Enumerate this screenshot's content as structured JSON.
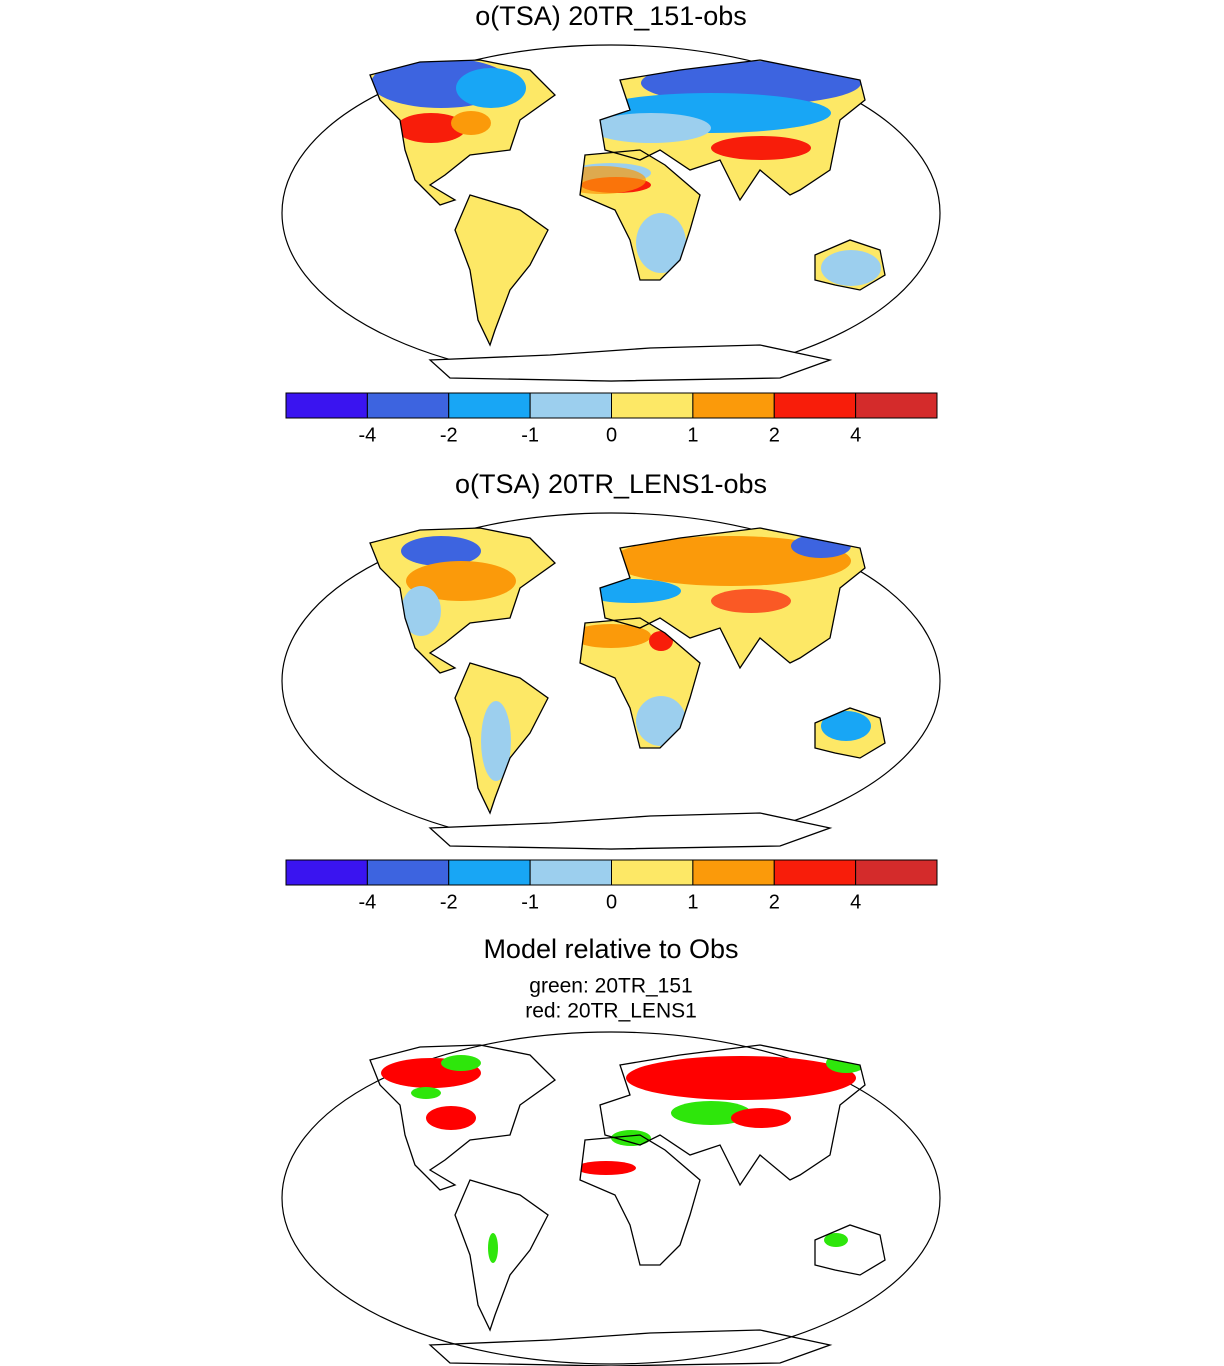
{
  "panels": [
    {
      "title": "o(TSA) 20TR_151-obs",
      "colorbar": {
        "colors": [
          "#3a14f0",
          "#3d64e0",
          "#18a6f5",
          "#9ccfee",
          "#fde866",
          "#fb9a0a",
          "#f81d0a",
          "#d42b2b"
        ],
        "ticks": [
          -4,
          -2,
          -1,
          0,
          1,
          2,
          4
        ]
      }
    },
    {
      "title": "o(TSA) 20TR_LENS1-obs",
      "colorbar": {
        "colors": [
          "#3a14f0",
          "#3d64e0",
          "#18a6f5",
          "#9ccfee",
          "#fde866",
          "#fb9a0a",
          "#f81d0a",
          "#d42b2b"
        ],
        "ticks": [
          -4,
          -2,
          -1,
          0,
          1,
          2,
          4
        ]
      }
    },
    {
      "title": "Model relative to Obs",
      "subtitles": [
        "green: 20TR_151",
        "red: 20TR_LENS1"
      ]
    }
  ]
}
